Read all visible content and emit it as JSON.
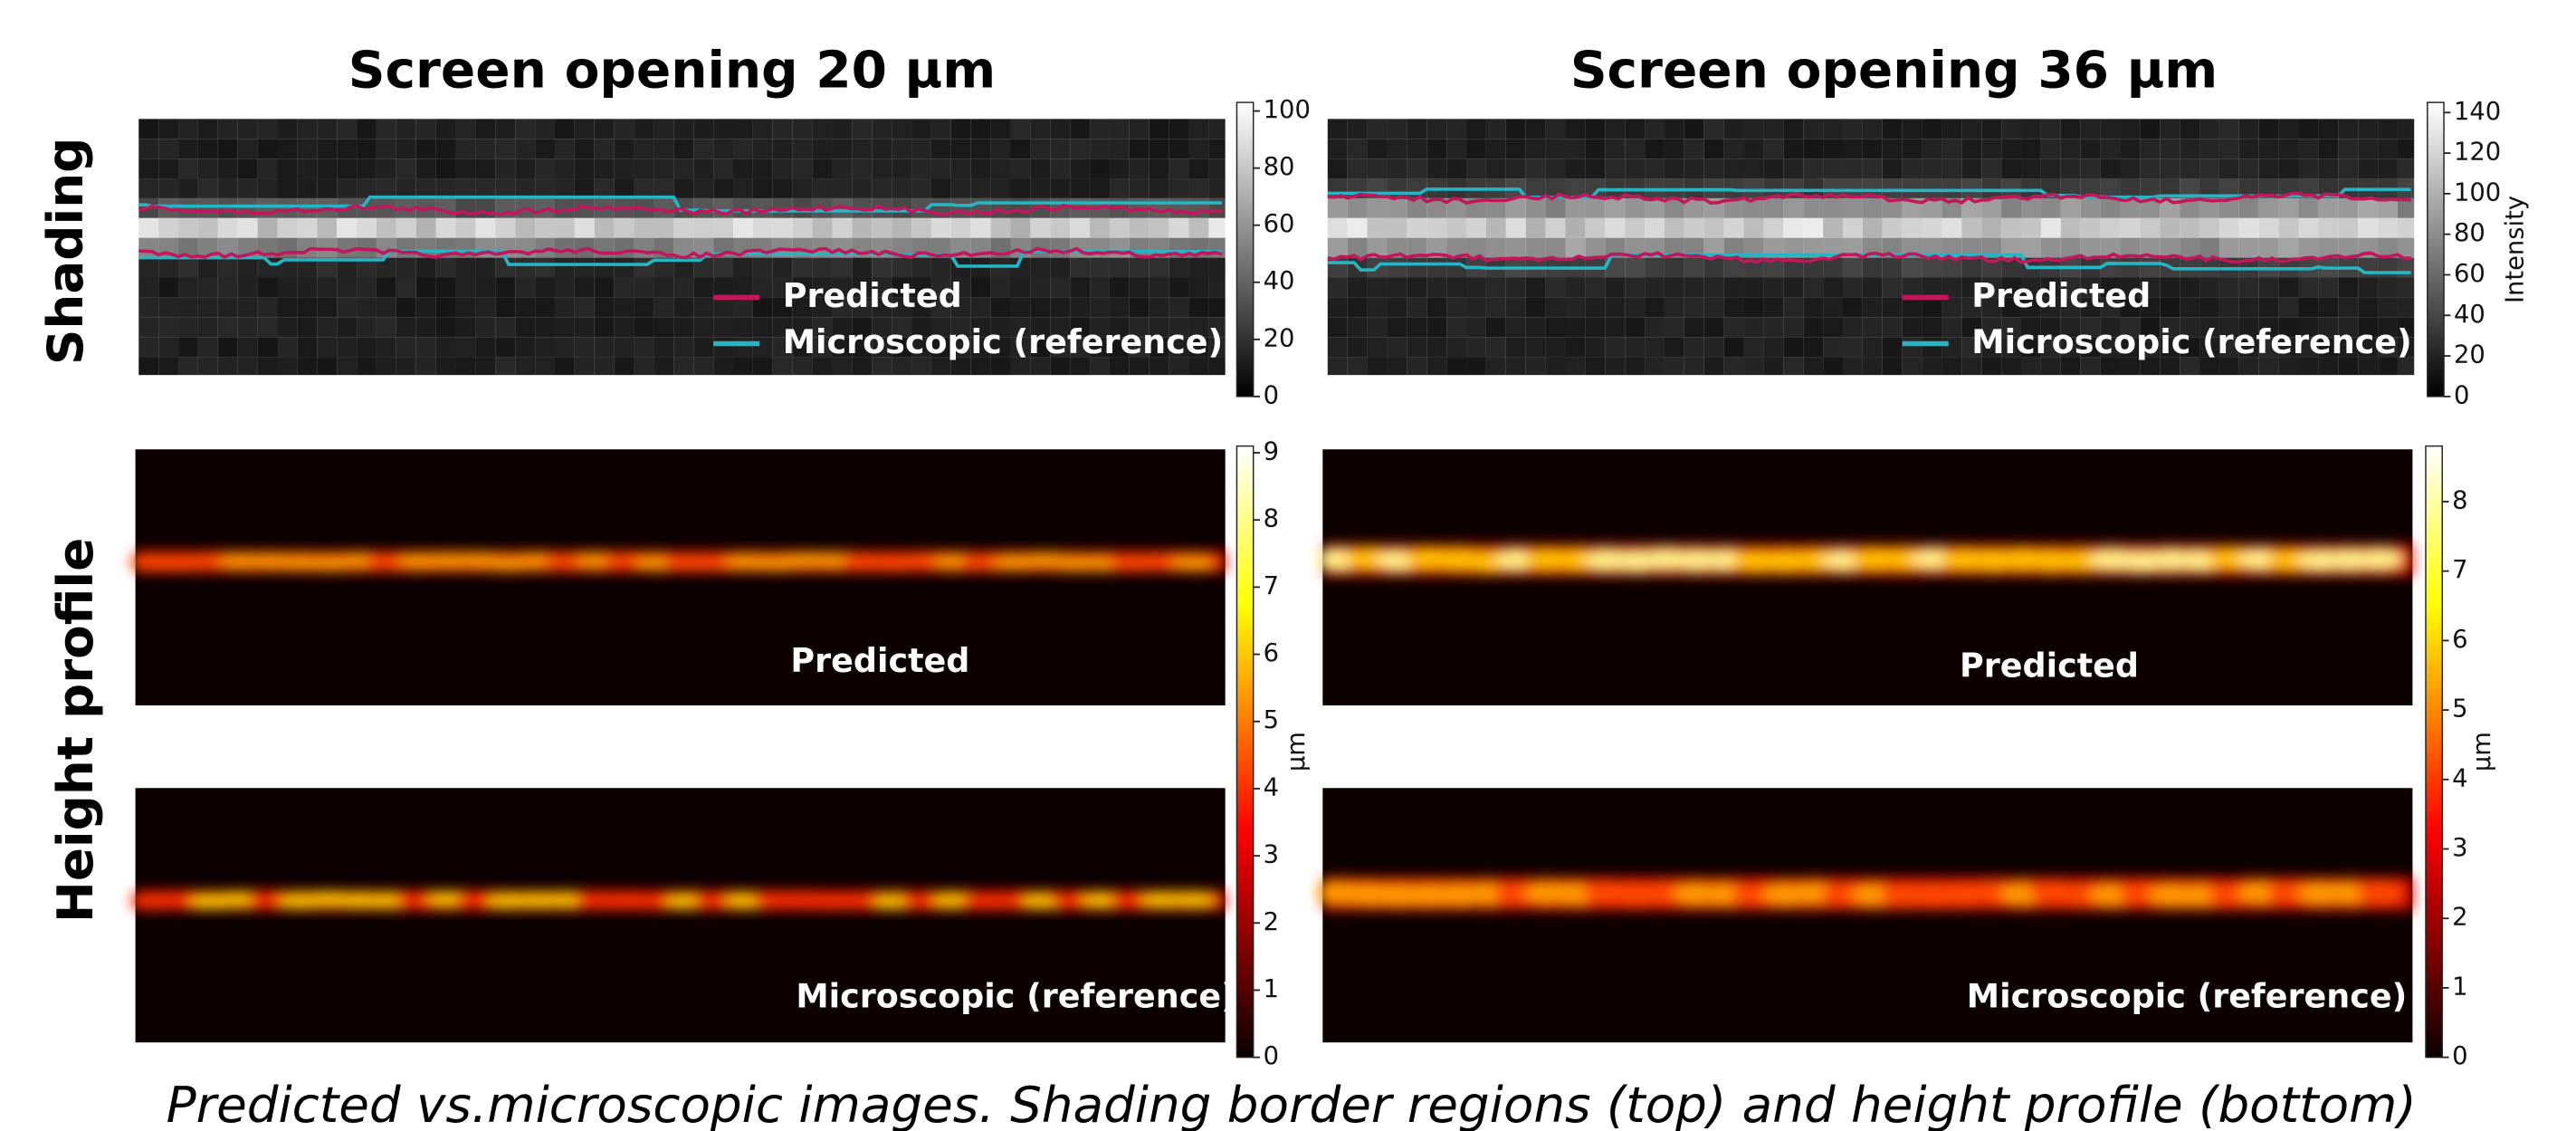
{
  "columns": [
    {
      "title": "Screen opening 20 µm"
    },
    {
      "title": "Screen opening 36 µm"
    }
  ],
  "rows": {
    "shading": "Shading",
    "height": "Height profile"
  },
  "shading": {
    "legend": [
      "Predicted",
      "Microscopic (reference)"
    ],
    "legend_colors": [
      "#c2185b",
      "#26b5c5"
    ],
    "colorbars": [
      {
        "lim": [
          0,
          103
        ],
        "ticks": [
          0,
          20,
          40,
          60,
          80,
          100
        ]
      },
      {
        "lim": [
          0,
          145
        ],
        "ticks": [
          0,
          20,
          40,
          60,
          80,
          100,
          120,
          140
        ],
        "label": "Intensity"
      }
    ]
  },
  "height": {
    "panel_labels": [
      "Predicted",
      "Microscopic (reference)"
    ],
    "colorbars": [
      {
        "lim": [
          0,
          9.1
        ],
        "ticks": [
          0,
          1,
          2,
          3,
          4,
          5,
          6,
          7,
          8,
          9
        ],
        "label": "µm"
      },
      {
        "lim": [
          0,
          8.8
        ],
        "ticks": [
          0,
          1,
          2,
          3,
          4,
          5,
          6,
          7,
          8
        ],
        "label": "µm"
      }
    ]
  },
  "caption": "Predicted vs.microscopic images. Shading border regions (top) and height profile (bottom)"
}
